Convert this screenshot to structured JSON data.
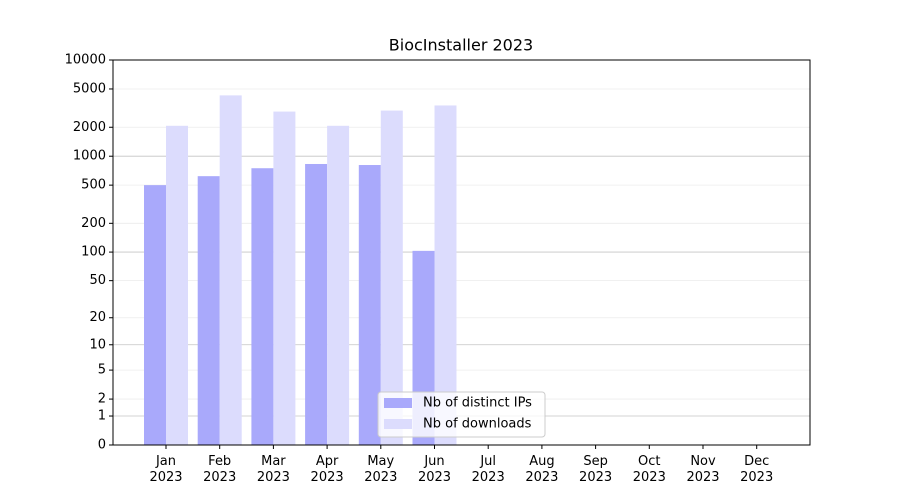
{
  "chart_data": {
    "type": "bar",
    "title": "BiocInstaller 2023",
    "categories": [
      "Jan 2023",
      "Feb 2023",
      "Mar 2023",
      "Apr 2023",
      "May 2023",
      "Jun 2023",
      "Jul 2023",
      "Aug 2023",
      "Sep 2023",
      "Oct 2023",
      "Nov 2023",
      "Dec 2023"
    ],
    "series": [
      {
        "name": "Nb of distinct IPs",
        "color": "#a9a9fb",
        "values": [
          500,
          620,
          750,
          830,
          810,
          103,
          null,
          null,
          null,
          null,
          null,
          null
        ]
      },
      {
        "name": "Nb of downloads",
        "color": "#dcdcfd",
        "values": [
          2070,
          4290,
          2910,
          2070,
          2980,
          3370,
          null,
          null,
          null,
          null,
          null,
          null
        ]
      }
    ],
    "scale": "log1p",
    "ylim": [
      0,
      10000
    ],
    "yticks": [
      0,
      1,
      2,
      5,
      10,
      20,
      50,
      100,
      200,
      500,
      1000,
      2000,
      5000,
      10000
    ],
    "grid": true,
    "legend": "lower center"
  }
}
